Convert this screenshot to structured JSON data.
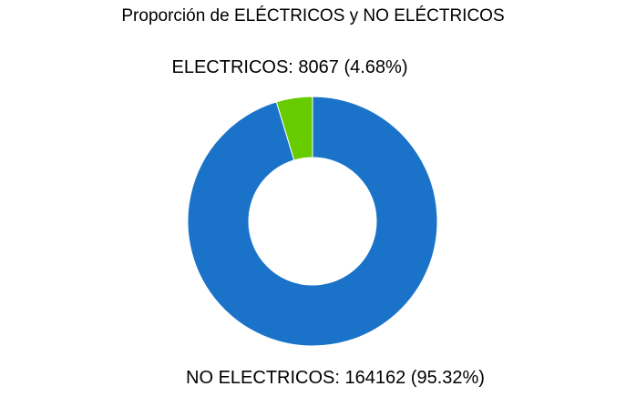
{
  "chart_data": {
    "type": "pie",
    "donut": true,
    "title": "Proporción de ELÉCTRICOS y NO ELÉCTRICOS",
    "categories": [
      "ELECTRICOS",
      "NO ELECTRICOS"
    ],
    "values": [
      8067,
      164162
    ],
    "percentages": [
      4.68,
      95.32
    ],
    "labels": [
      "ELECTRICOS: 8067 (4.68%)",
      "NO ELECTRICOS: 164162 (95.32%)"
    ],
    "colors": [
      "#66cc00",
      "#1a73c9"
    ],
    "legend": "none",
    "grid": false
  }
}
